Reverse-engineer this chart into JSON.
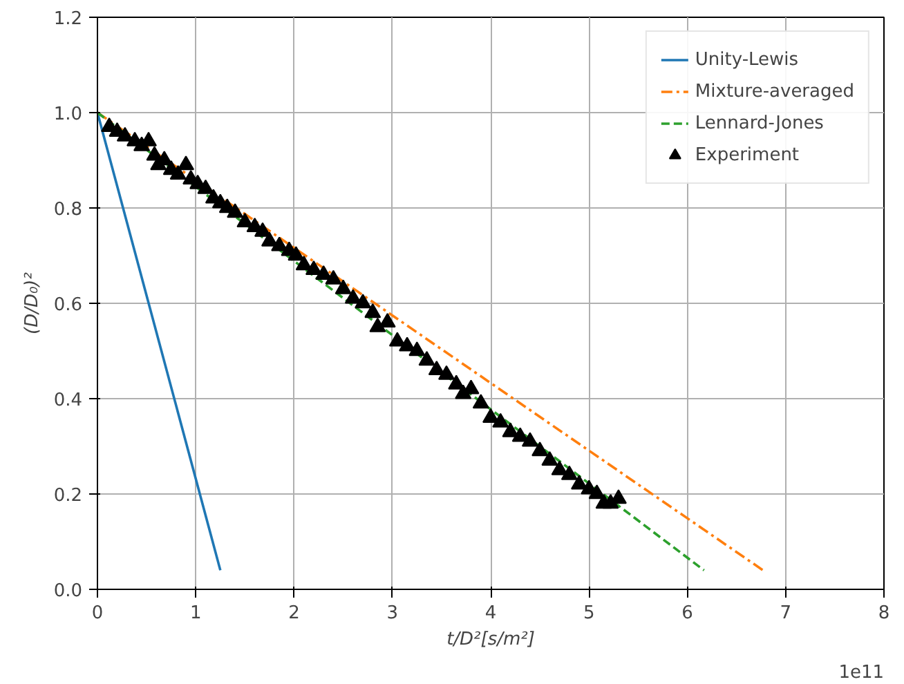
{
  "chart_data": {
    "type": "line",
    "xlabel": "t/D²[s/m²]",
    "ylabel": "(D/D₀)²",
    "annotations": [
      "1e11"
    ],
    "xlim": [
      0,
      8
    ],
    "ylim": [
      0,
      1.2
    ],
    "xticks": [
      0,
      1,
      2,
      3,
      4,
      5,
      6,
      7,
      8
    ],
    "yticks": [
      {
        "value": 0,
        "label": "0.0"
      },
      0.2,
      0.4,
      0.6,
      0.8,
      {
        "value": 1,
        "label": "1.0"
      },
      1.2
    ],
    "grid": true,
    "legend": "top right",
    "series": [
      {
        "name": "Unity-Lewis",
        "color": "#1f77b4",
        "line_style": "solid",
        "x": [
          0,
          1.25
        ],
        "values": [
          1.0,
          0.04
        ]
      },
      {
        "name": "Mixture-averaged",
        "color": "#ff7f0e",
        "line_style": "dashdot",
        "x": [
          0,
          6.77
        ],
        "values": [
          1.0,
          0.04
        ]
      },
      {
        "name": "Lennard-Jones",
        "color": "#2ca02c",
        "line_style": "dashed",
        "x": [
          0,
          6.17
        ],
        "values": [
          1.0,
          0.04
        ]
      },
      {
        "name": "Experiment",
        "type": "scatter",
        "marker": "triangle",
        "color": "#000000",
        "x": [
          0.12,
          0.2,
          0.28,
          0.38,
          0.45,
          0.52,
          0.58,
          0.62,
          0.68,
          0.75,
          0.82,
          0.9,
          0.95,
          1.02,
          1.1,
          1.18,
          1.25,
          1.32,
          1.4,
          1.5,
          1.6,
          1.68,
          1.75,
          1.85,
          1.95,
          2.02,
          2.1,
          2.2,
          2.3,
          2.4,
          2.5,
          2.6,
          2.7,
          2.8,
          2.85,
          2.95,
          3.05,
          3.15,
          3.25,
          3.35,
          3.45,
          3.55,
          3.65,
          3.72,
          3.8,
          3.9,
          4.0,
          4.1,
          4.2,
          4.3,
          4.4,
          4.5,
          4.6,
          4.7,
          4.8,
          4.9,
          5.0,
          5.08,
          5.15,
          5.22,
          5.3
        ],
        "values": [
          0.97,
          0.96,
          0.95,
          0.94,
          0.93,
          0.94,
          0.91,
          0.89,
          0.9,
          0.88,
          0.87,
          0.89,
          0.86,
          0.85,
          0.84,
          0.82,
          0.81,
          0.8,
          0.79,
          0.77,
          0.76,
          0.75,
          0.73,
          0.72,
          0.71,
          0.7,
          0.68,
          0.67,
          0.66,
          0.65,
          0.63,
          0.61,
          0.6,
          0.58,
          0.55,
          0.56,
          0.52,
          0.51,
          0.5,
          0.48,
          0.46,
          0.45,
          0.43,
          0.41,
          0.42,
          0.39,
          0.36,
          0.35,
          0.33,
          0.32,
          0.31,
          0.29,
          0.27,
          0.25,
          0.24,
          0.22,
          0.21,
          0.2,
          0.18,
          0.18,
          0.19
        ]
      }
    ]
  }
}
